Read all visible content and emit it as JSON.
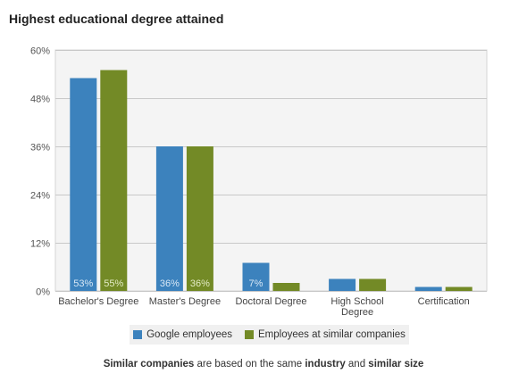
{
  "title": "Highest educational degree attained",
  "colors": {
    "google": "#3c82bd",
    "similar": "#738a26",
    "google_label": "#d8e8f6",
    "similar_label": "#e4ecc6",
    "plot_bg": "#f4f4f4",
    "grid": "#c8c8c8"
  },
  "legend": {
    "google": "Google employees",
    "similar": "Employees at similar companies"
  },
  "footnote": {
    "p1": "Similar companies",
    "p2": " are based on the same ",
    "p3": "industry",
    "p4": " and ",
    "p5": "similar size"
  },
  "chart_data": {
    "type": "bar",
    "title": "Highest educational degree attained",
    "categories": [
      [
        "Bachelor's Degree"
      ],
      [
        "Master's Degree"
      ],
      [
        "Doctoral Degree"
      ],
      [
        "High School",
        "Degree"
      ],
      [
        "Certification"
      ]
    ],
    "series": [
      {
        "name": "Google employees",
        "values": [
          53,
          36,
          7,
          3,
          1
        ],
        "labels": [
          "53%",
          "36%",
          "7%",
          "",
          ""
        ]
      },
      {
        "name": "Employees at similar companies",
        "values": [
          55,
          36,
          2,
          3,
          1
        ],
        "labels": [
          "55%",
          "36%",
          "",
          "",
          ""
        ]
      }
    ],
    "ylim": [
      0,
      60
    ],
    "yticks": [
      0,
      12,
      24,
      36,
      48,
      60
    ],
    "ytick_labels": [
      "0%",
      "12%",
      "24%",
      "36%",
      "48%",
      "60%"
    ],
    "grid": true,
    "legend_position": "bottom"
  }
}
